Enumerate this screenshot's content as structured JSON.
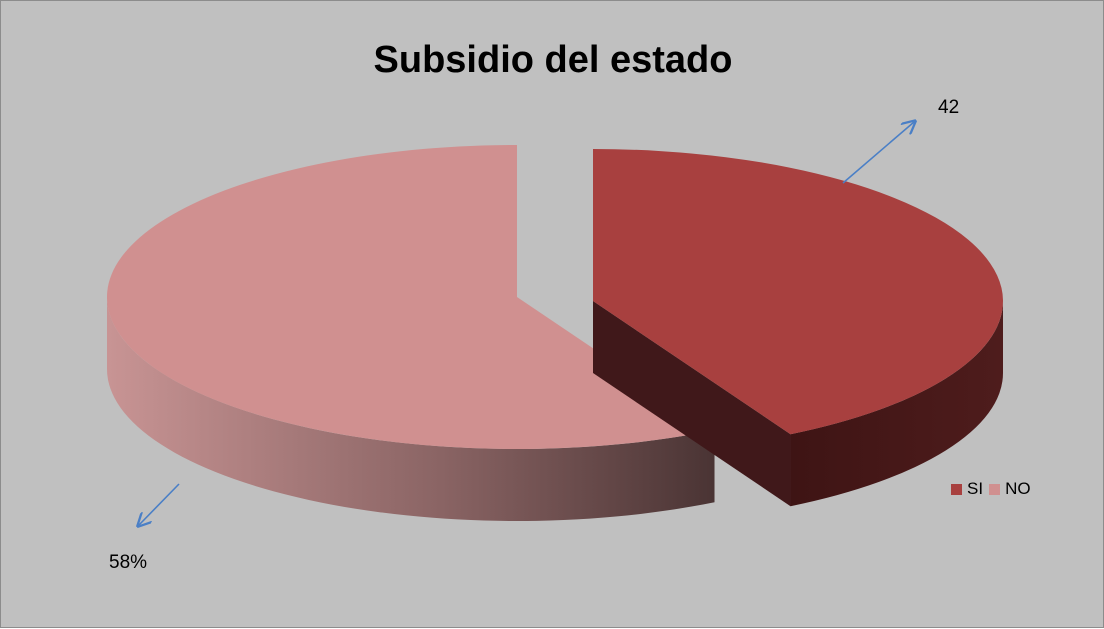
{
  "chart_data": {
    "type": "pie",
    "title": "Subsidio del estado",
    "categories": [
      "SI",
      "NO"
    ],
    "values": [
      42,
      58
    ],
    "data_labels": [
      "42",
      "58%"
    ],
    "colors": [
      "#a8403f",
      "#d09090"
    ],
    "legend": {
      "position": "right",
      "entries": [
        "SI",
        "NO"
      ]
    },
    "exploded": true,
    "three_d": true
  },
  "colors": {
    "background": "#c0c0c0",
    "arrow": "#4a7fc6"
  }
}
